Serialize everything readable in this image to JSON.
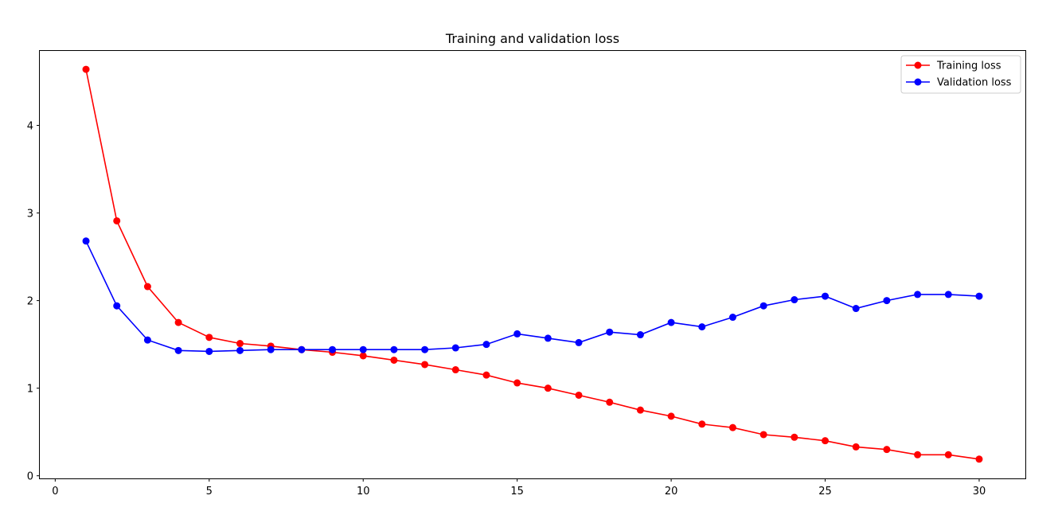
{
  "chart_data": {
    "type": "line",
    "title": "Training and validation loss",
    "xlabel": "",
    "ylabel": "",
    "xlim": [
      -0.5,
      31.5
    ],
    "ylim": [
      -0.03,
      4.85
    ],
    "xticks": [
      0,
      5,
      10,
      15,
      20,
      25,
      30
    ],
    "yticks": [
      0,
      1,
      2,
      3,
      4
    ],
    "grid": false,
    "legend_position": "top-right",
    "x": [
      1,
      2,
      3,
      4,
      5,
      6,
      7,
      8,
      9,
      10,
      11,
      12,
      13,
      14,
      15,
      16,
      17,
      18,
      19,
      20,
      21,
      22,
      23,
      24,
      25,
      26,
      27,
      28,
      29,
      30
    ],
    "series": [
      {
        "name": "Training loss",
        "color": "#ff0000",
        "marker": "circle",
        "values": [
          4.64,
          2.91,
          2.16,
          1.75,
          1.58,
          1.51,
          1.48,
          1.44,
          1.41,
          1.37,
          1.32,
          1.27,
          1.21,
          1.15,
          1.06,
          1.0,
          0.92,
          0.84,
          0.75,
          0.68,
          0.59,
          0.55,
          0.47,
          0.44,
          0.4,
          0.33,
          0.3,
          0.24,
          0.24,
          0.19
        ]
      },
      {
        "name": "Validation loss",
        "color": "#0000ff",
        "marker": "circle",
        "values": [
          2.68,
          1.94,
          1.55,
          1.43,
          1.42,
          1.43,
          1.44,
          1.44,
          1.44,
          1.44,
          1.44,
          1.44,
          1.46,
          1.5,
          1.62,
          1.57,
          1.52,
          1.64,
          1.61,
          1.75,
          1.7,
          1.81,
          1.94,
          2.01,
          2.05,
          1.91,
          2.0,
          2.07,
          2.07,
          2.05
        ]
      }
    ]
  }
}
